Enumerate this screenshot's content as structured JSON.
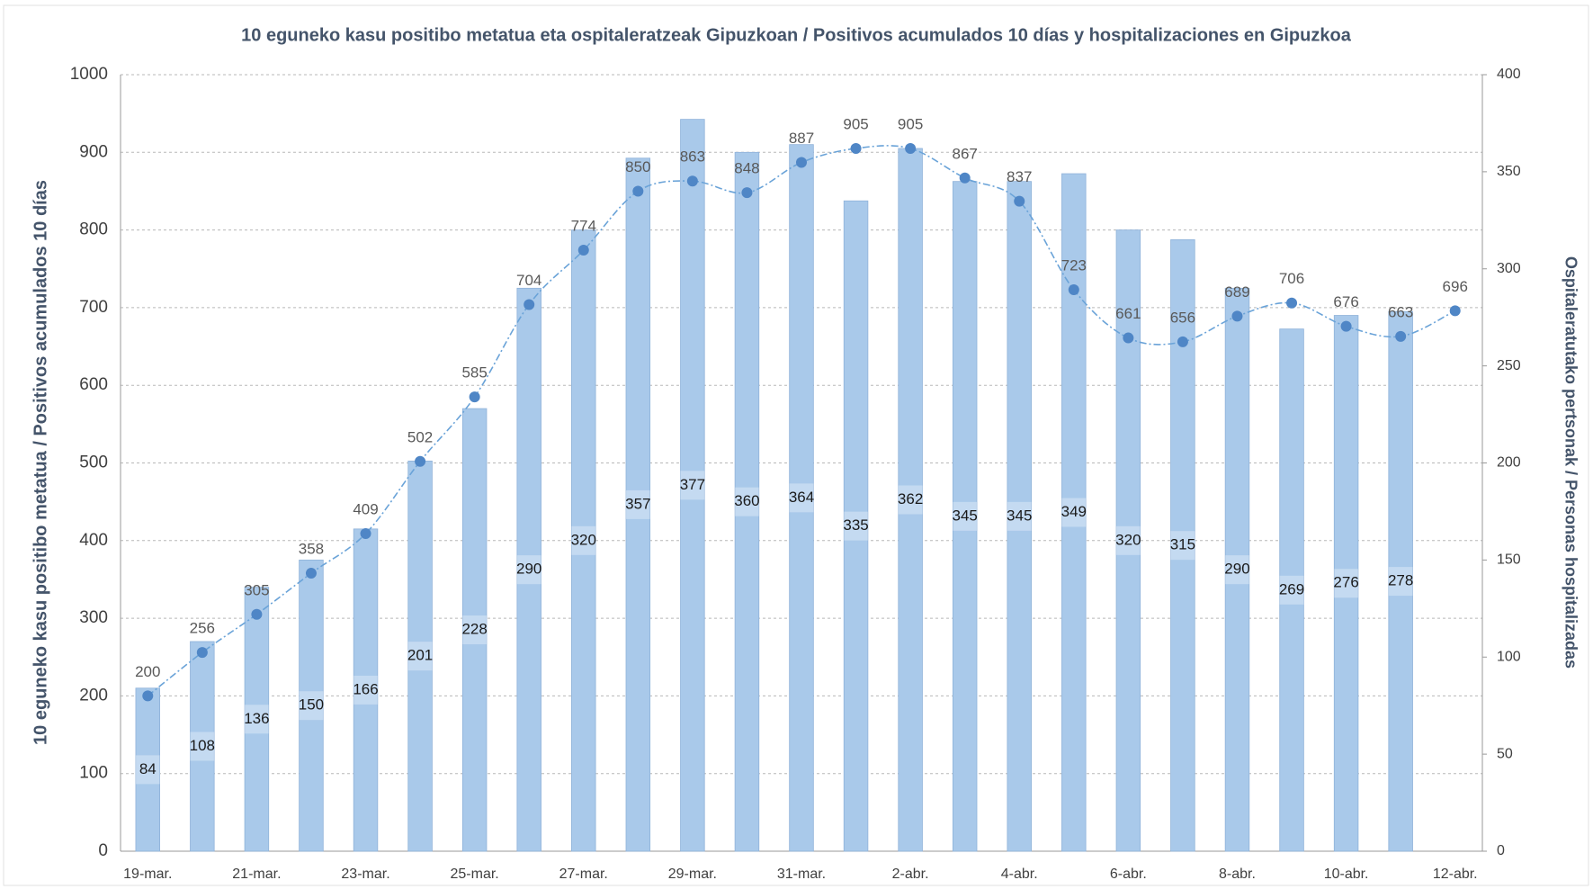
{
  "chart_data": {
    "type": "bar",
    "title": "10 eguneko kasu positibo metatua eta ospitaleratzeak Gipuzkoan / Positivos acumulados 10 días y hospitalizaciones en Gipuzkoa",
    "y_label": "10 eguneko kasu positibo metatua  / Positivos acumulados 10 días",
    "y2_label": "Ospitaleratutako pertsonak / Personas hospitalizadas",
    "categories": [
      "19-mar.",
      null,
      "21-mar.",
      null,
      "23-mar.",
      null,
      "25-mar.",
      null,
      "27-mar.",
      null,
      "29-mar.",
      null,
      "31-mar.",
      null,
      "2-abr.",
      null,
      "4-abr.",
      null,
      "6-abr.",
      null,
      "8-abr.",
      null,
      "10-abr.",
      null,
      "12-abr."
    ],
    "series": [
      {
        "type": "bar",
        "axis": "y2",
        "color": "#a9c9ea",
        "values": [
          84,
          108,
          136,
          150,
          166,
          201,
          228,
          290,
          320,
          357,
          377,
          360,
          364,
          335,
          362,
          345,
          345,
          349,
          320,
          315,
          290,
          269,
          276,
          278,
          null
        ]
      },
      {
        "type": "line",
        "color": "#4f86c6",
        "values": [
          200,
          256,
          305,
          358,
          409,
          502,
          585,
          704,
          774,
          850,
          863,
          848,
          887,
          905,
          905,
          867,
          837,
          723,
          661,
          656,
          689,
          706,
          676,
          663,
          696
        ]
      }
    ],
    "ylim": [
      0,
      1000
    ],
    "yticks": [
      0,
      100,
      200,
      300,
      400,
      500,
      600,
      700,
      800,
      900,
      1000
    ],
    "y2lim": [
      0,
      400
    ],
    "y2ticks": [
      0,
      50,
      100,
      150,
      200,
      250,
      300,
      350,
      400
    ],
    "grid": true
  }
}
